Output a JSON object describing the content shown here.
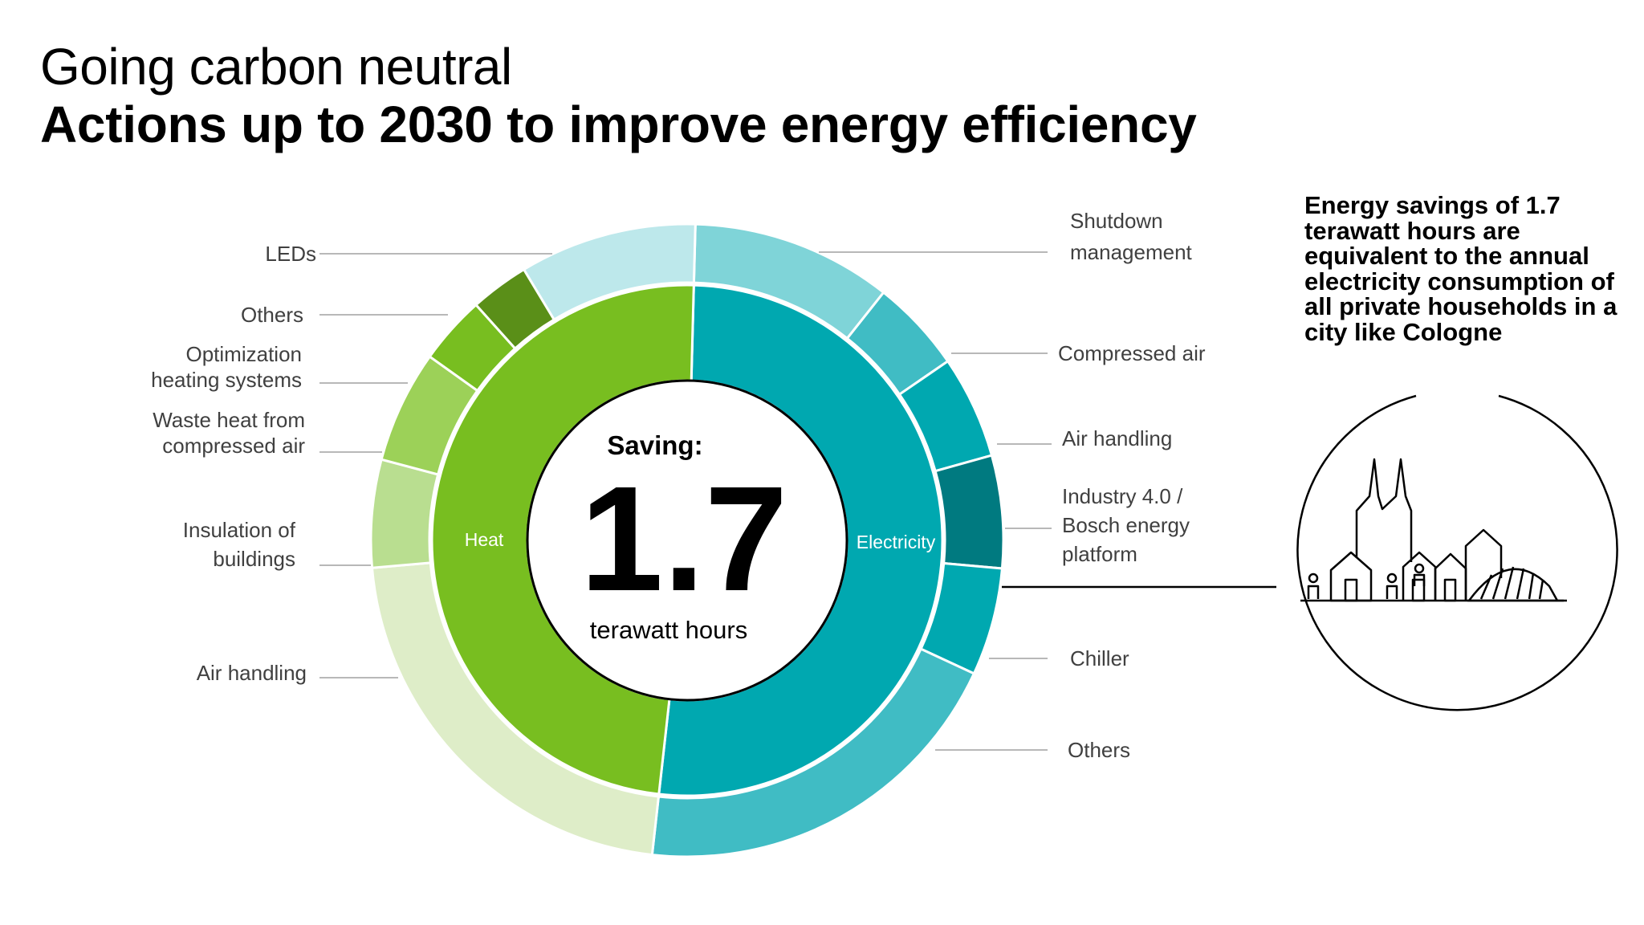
{
  "header": {
    "title": "Going carbon neutral",
    "subtitle": "Actions up to 2030 to improve energy efficiency"
  },
  "note": {
    "text": "Energy savings of 1.7 terawatt hours are equivalent to the annual electricity consumption of all private households in a city like Cologne"
  },
  "center": {
    "label": "Saving:",
    "value": "1.7",
    "unit": "terawatt hours"
  },
  "chart_data": {
    "type": "pie",
    "subtype": "sunburst",
    "title": "Saving: 1.7 terawatt hours",
    "inner": [
      {
        "name": "Heat",
        "share": 0.4865,
        "color": "#78be20"
      },
      {
        "name": "Electricity",
        "share": 0.5135,
        "color": "#00a8b0"
      }
    ],
    "outer": [
      {
        "name": "Shutdown management",
        "parent": "Electricity",
        "share": 0.1025,
        "color": "#7fd4d8"
      },
      {
        "name": "Compressed air",
        "parent": "Electricity",
        "share": 0.0475,
        "color": "#40bcc4"
      },
      {
        "name": "Air handling",
        "parent": "Electricity",
        "share": 0.0525,
        "color": "#00a8b0"
      },
      {
        "name": "Industry 4.0 / Bosch energy platform",
        "parent": "Electricity",
        "share": 0.0575,
        "color": "#007a80"
      },
      {
        "name": "Chiller",
        "parent": "Electricity",
        "share": 0.055,
        "color": "#00a8b0"
      },
      {
        "name": "Others",
        "parent": "Electricity",
        "share": 0.1985,
        "color": "#40bcc4"
      },
      {
        "name": "Air handling",
        "parent": "Heat",
        "share": 0.2185,
        "color": "#deedc8"
      },
      {
        "name": "Insulation of buildings",
        "parent": "Heat",
        "share": 0.055,
        "color": "#b9de90"
      },
      {
        "name": "Waste heat from compressed air",
        "parent": "Heat",
        "share": 0.0575,
        "color": "#9cd158"
      },
      {
        "name": "Optimization heating systems",
        "parent": "Heat",
        "share": 0.035,
        "color": "#78be20"
      },
      {
        "name": "Others",
        "parent": "Heat",
        "share": 0.03,
        "color": "#5a8f18"
      },
      {
        "name": "LEDs",
        "parent": "Heat",
        "share": 0.0905,
        "color": "#bde8eb"
      }
    ]
  },
  "labels": {
    "ring": {
      "heat": "Heat",
      "electricity": "Electricity"
    },
    "right": [
      {
        "lines": [
          "Shutdown",
          "management"
        ]
      },
      {
        "lines": [
          "Compressed air"
        ]
      },
      {
        "lines": [
          "Air handling"
        ]
      },
      {
        "lines": [
          "Industry 4.0 /",
          "Bosch energy",
          "platform"
        ]
      },
      {
        "lines": [
          "Chiller"
        ]
      },
      {
        "lines": [
          "Others"
        ]
      }
    ],
    "left": [
      {
        "lines": [
          "LEDs"
        ]
      },
      {
        "lines": [
          "Others"
        ]
      },
      {
        "lines": [
          "Optimization",
          "heating systems"
        ]
      },
      {
        "lines": [
          "Waste heat from",
          "compressed air"
        ]
      },
      {
        "lines": [
          "Insulation of",
          "buildings"
        ]
      },
      {
        "lines": [
          "Air handling"
        ]
      }
    ]
  }
}
